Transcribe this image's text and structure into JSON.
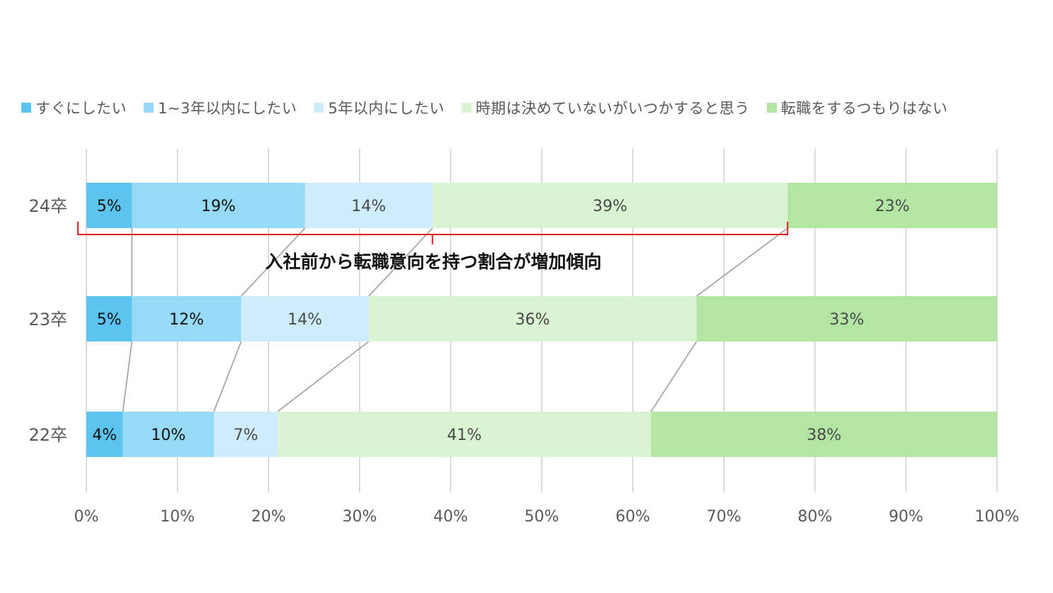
{
  "chart_data": {
    "type": "bar",
    "orientation": "horizontal",
    "stacked": "percent",
    "categories": [
      "24卒",
      "23卒",
      "22卒"
    ],
    "series": [
      {
        "name": "すぐにしたい",
        "color": "#5bc5ef",
        "values": [
          5,
          5,
          4
        ]
      },
      {
        "name": "1~3年以内にしたい",
        "color": "#97daf7",
        "values": [
          19,
          12,
          10
        ]
      },
      {
        "name": "5年以内にしたい",
        "color": "#cdedfc",
        "values": [
          14,
          14,
          7
        ]
      },
      {
        "name": "時期は決めていないがいつかすると思う",
        "color": "#daf3d3",
        "values": [
          39,
          36,
          41
        ]
      },
      {
        "name": "転職をするつもりはない",
        "color": "#b3e5a3",
        "values": [
          23,
          33,
          38
        ]
      }
    ],
    "data_labels": [
      [
        "5%",
        "19%",
        "14%",
        "39%",
        "23%"
      ],
      [
        "5%",
        "12%",
        "14%",
        "36%",
        "33%"
      ],
      [
        "4%",
        "10%",
        "7%",
        "41%",
        "38%"
      ]
    ],
    "xlim": [
      0,
      100
    ],
    "xticks": [
      "0%",
      "10%",
      "20%",
      "30%",
      "40%",
      "50%",
      "60%",
      "70%",
      "80%",
      "90%",
      "100%"
    ],
    "grid": "vertical",
    "legend_position": "top",
    "connector_lines": true,
    "annotation": {
      "text": "入社前から転職意向を持つ割合が増加傾向",
      "bracket_color": "#e02020",
      "spans": "24卒: すぐにしたい through 時期は決めていないがいつかすると思う"
    }
  }
}
